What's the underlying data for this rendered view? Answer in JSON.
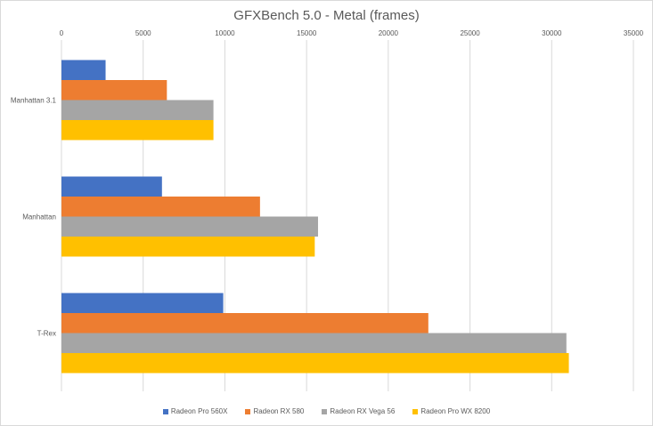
{
  "chart_data": {
    "type": "bar",
    "orientation": "horizontal",
    "title": "GFXBench 5.0 - Metal (frames)",
    "categories": [
      "Manhattan 3.1",
      "Manhattan",
      "T-Rex"
    ],
    "xlim": [
      0,
      35000
    ],
    "xticks": [
      0,
      5000,
      10000,
      15000,
      20000,
      25000,
      30000,
      35000
    ],
    "x_axis_position": "top",
    "grid": true,
    "legend_position": "bottom",
    "series": [
      {
        "name": "Radeon Pro 560X",
        "color": "#4472c4",
        "values": [
          2700,
          6150,
          9900
        ]
      },
      {
        "name": "Radeon RX 580",
        "color": "#ed7d31",
        "values": [
          6450,
          12150,
          22450
        ]
      },
      {
        "name": "Radeon RX Vega 56",
        "color": "#a5a5a5",
        "values": [
          9300,
          15700,
          30900
        ]
      },
      {
        "name": "Radeon Pro WX 8200",
        "color": "#ffc000",
        "values": [
          9300,
          15500,
          31050
        ]
      }
    ]
  }
}
